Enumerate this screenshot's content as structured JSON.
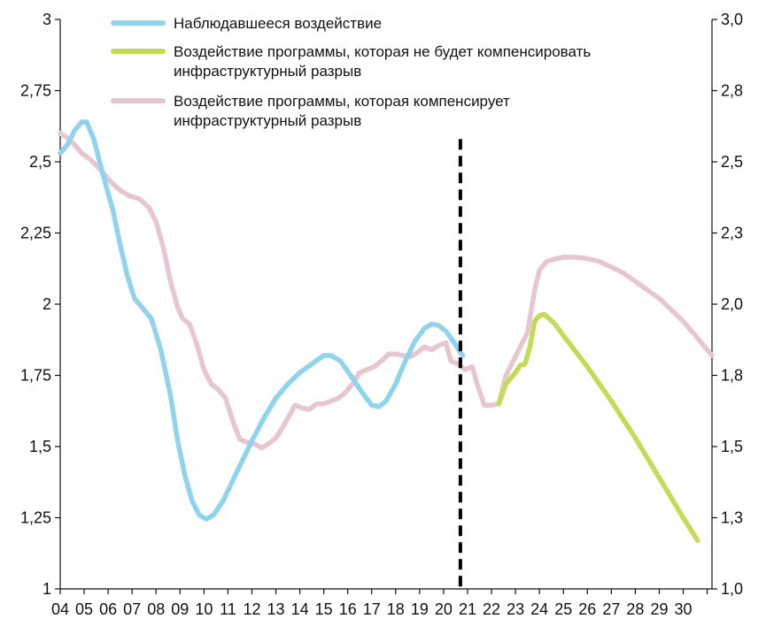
{
  "chart_data": {
    "type": "line",
    "title": "",
    "xlabel": "",
    "ylabel": "",
    "x_tick_labels": [
      "04",
      "05",
      "06",
      "07",
      "08",
      "09",
      "10",
      "11",
      "12",
      "13",
      "14",
      "15",
      "16",
      "17",
      "18",
      "19",
      "20",
      "21",
      "22",
      "23",
      "24",
      "25",
      "26",
      "27",
      "28",
      "29",
      "30"
    ],
    "xlim": [
      4,
      31.2
    ],
    "left_axis": {
      "ylim": [
        1,
        3
      ],
      "ticks": [
        1,
        1.25,
        1.5,
        1.75,
        2,
        2.25,
        2.5,
        2.75,
        3
      ],
      "tick_labels": [
        "1",
        "1,25",
        "1,5",
        "1,75",
        "2",
        "2,25",
        "2,5",
        "2,75",
        "3"
      ]
    },
    "right_axis": {
      "ticks": [
        1.0,
        1.3,
        1.5,
        1.8,
        2.0,
        2.3,
        2.5,
        2.8,
        3.0
      ],
      "tick_labels": [
        "1,0",
        "1,3",
        "1,5",
        "1,8",
        "2,0",
        "2,3",
        "2,5",
        "2,8",
        "3,0"
      ]
    },
    "vertical_line": {
      "x": 20.7,
      "from_y": 1,
      "to_y": 2.58,
      "style": "dashed",
      "color": "#000000"
    },
    "legend": [
      {
        "series": "observed",
        "label_lines": [
          "Наблюдавшееся воздействие"
        ]
      },
      {
        "series": "no_compensation",
        "label_lines": [
          "Воздействие программы, которая не будет компенсировать",
          "инфраструктурный разрыв"
        ]
      },
      {
        "series": "compensation",
        "label_lines": [
          "Воздействие программы, которая компенсирует",
          "инфраструктурный разрыв"
        ]
      }
    ],
    "series": [
      {
        "id": "observed",
        "name": "Наблюдавшееся воздействие",
        "color": "#8fd3ef",
        "points": [
          [
            4.0,
            2.53
          ],
          [
            4.3,
            2.56
          ],
          [
            4.6,
            2.61
          ],
          [
            4.9,
            2.64
          ],
          [
            5.1,
            2.64
          ],
          [
            5.4,
            2.58
          ],
          [
            5.8,
            2.45
          ],
          [
            6.2,
            2.33
          ],
          [
            6.5,
            2.21
          ],
          [
            6.8,
            2.1
          ],
          [
            7.1,
            2.02
          ],
          [
            7.4,
            1.99
          ],
          [
            7.8,
            1.95
          ],
          [
            8.2,
            1.84
          ],
          [
            8.6,
            1.68
          ],
          [
            8.9,
            1.52
          ],
          [
            9.2,
            1.4
          ],
          [
            9.5,
            1.31
          ],
          [
            9.8,
            1.26
          ],
          [
            10.1,
            1.245
          ],
          [
            10.4,
            1.26
          ],
          [
            10.8,
            1.31
          ],
          [
            11.2,
            1.38
          ],
          [
            11.6,
            1.45
          ],
          [
            12.0,
            1.52
          ],
          [
            12.5,
            1.6
          ],
          [
            13.0,
            1.67
          ],
          [
            13.5,
            1.72
          ],
          [
            14.0,
            1.76
          ],
          [
            14.5,
            1.79
          ],
          [
            15.0,
            1.82
          ],
          [
            15.3,
            1.82
          ],
          [
            15.7,
            1.8
          ],
          [
            16.2,
            1.74
          ],
          [
            16.6,
            1.69
          ],
          [
            17.0,
            1.645
          ],
          [
            17.3,
            1.64
          ],
          [
            17.6,
            1.66
          ],
          [
            18.0,
            1.72
          ],
          [
            18.4,
            1.8
          ],
          [
            18.8,
            1.87
          ],
          [
            19.2,
            1.915
          ],
          [
            19.5,
            1.93
          ],
          [
            19.8,
            1.925
          ],
          [
            20.1,
            1.905
          ],
          [
            20.4,
            1.87
          ],
          [
            20.7,
            1.83
          ],
          [
            20.8,
            1.82
          ]
        ]
      },
      {
        "id": "no_compensation",
        "name": "Воздействие программы, которая не будет компенсировать инфраструктурный разрыв",
        "color": "#c5da55",
        "points": [
          [
            22.3,
            1.65
          ],
          [
            22.6,
            1.72
          ],
          [
            23.0,
            1.76
          ],
          [
            23.2,
            1.785
          ],
          [
            23.4,
            1.79
          ],
          [
            23.6,
            1.85
          ],
          [
            23.8,
            1.94
          ],
          [
            24.0,
            1.96
          ],
          [
            24.2,
            1.965
          ],
          [
            24.6,
            1.935
          ],
          [
            25.0,
            1.89
          ],
          [
            26.0,
            1.78
          ],
          [
            27.0,
            1.66
          ],
          [
            28.0,
            1.53
          ],
          [
            29.0,
            1.39
          ],
          [
            30.0,
            1.25
          ],
          [
            30.6,
            1.17
          ]
        ]
      },
      {
        "id": "compensation",
        "name": "Воздействие программы, которая компенсирует инфраструктурный разрыв",
        "color": "#e8c6cf",
        "points": [
          [
            4.0,
            2.6
          ],
          [
            4.3,
            2.585
          ],
          [
            4.6,
            2.56
          ],
          [
            4.9,
            2.53
          ],
          [
            5.3,
            2.505
          ],
          [
            5.7,
            2.47
          ],
          [
            6.1,
            2.43
          ],
          [
            6.5,
            2.4
          ],
          [
            6.9,
            2.38
          ],
          [
            7.3,
            2.37
          ],
          [
            7.7,
            2.34
          ],
          [
            8.0,
            2.29
          ],
          [
            8.3,
            2.2
          ],
          [
            8.6,
            2.08
          ],
          [
            8.9,
            1.99
          ],
          [
            9.1,
            1.95
          ],
          [
            9.4,
            1.93
          ],
          [
            9.7,
            1.86
          ],
          [
            10.0,
            1.77
          ],
          [
            10.3,
            1.72
          ],
          [
            10.6,
            1.7
          ],
          [
            10.9,
            1.67
          ],
          [
            11.2,
            1.59
          ],
          [
            11.5,
            1.525
          ],
          [
            11.8,
            1.515
          ],
          [
            12.1,
            1.51
          ],
          [
            12.4,
            1.495
          ],
          [
            12.7,
            1.51
          ],
          [
            13.0,
            1.53
          ],
          [
            13.3,
            1.57
          ],
          [
            13.6,
            1.615
          ],
          [
            13.8,
            1.645
          ],
          [
            14.1,
            1.635
          ],
          [
            14.4,
            1.63
          ],
          [
            14.7,
            1.65
          ],
          [
            15.0,
            1.65
          ],
          [
            15.3,
            1.66
          ],
          [
            15.6,
            1.67
          ],
          [
            15.9,
            1.69
          ],
          [
            16.2,
            1.72
          ],
          [
            16.5,
            1.76
          ],
          [
            16.8,
            1.77
          ],
          [
            17.1,
            1.78
          ],
          [
            17.4,
            1.8
          ],
          [
            17.7,
            1.825
          ],
          [
            18.0,
            1.825
          ],
          [
            18.3,
            1.82
          ],
          [
            18.6,
            1.815
          ],
          [
            18.9,
            1.83
          ],
          [
            19.2,
            1.85
          ],
          [
            19.5,
            1.84
          ],
          [
            19.8,
            1.855
          ],
          [
            20.1,
            1.865
          ],
          [
            20.3,
            1.8
          ],
          [
            20.6,
            1.79
          ],
          [
            20.9,
            1.77
          ],
          [
            21.2,
            1.78
          ],
          [
            21.4,
            1.72
          ],
          [
            21.7,
            1.645
          ],
          [
            22.0,
            1.645
          ],
          [
            22.3,
            1.65
          ],
          [
            22.6,
            1.75
          ],
          [
            22.9,
            1.8
          ],
          [
            23.2,
            1.85
          ],
          [
            23.5,
            1.9
          ],
          [
            23.8,
            2.05
          ],
          [
            24.0,
            2.12
          ],
          [
            24.3,
            2.15
          ],
          [
            24.7,
            2.16
          ],
          [
            25.0,
            2.165
          ],
          [
            25.5,
            2.165
          ],
          [
            26.0,
            2.16
          ],
          [
            26.5,
            2.15
          ],
          [
            27.0,
            2.13
          ],
          [
            27.5,
            2.11
          ],
          [
            28.0,
            2.08
          ],
          [
            28.5,
            2.05
          ],
          [
            29.0,
            2.02
          ],
          [
            29.5,
            1.98
          ],
          [
            30.0,
            1.94
          ],
          [
            30.5,
            1.89
          ],
          [
            31.0,
            1.84
          ],
          [
            31.2,
            1.82
          ]
        ]
      }
    ]
  }
}
